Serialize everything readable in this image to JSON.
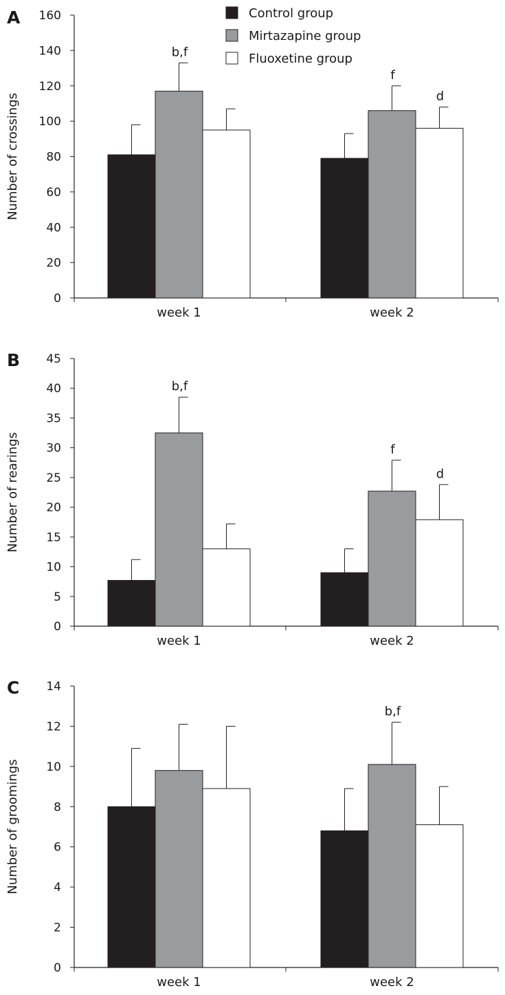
{
  "legend": [
    {
      "name": "Control group",
      "color": "#231f20"
    },
    {
      "name": "Mirtazapine group",
      "color": "#9a9b9d"
    },
    {
      "name": "Fluoxetine group",
      "color": "#ffffff"
    }
  ],
  "chart_data": [
    {
      "type": "bar",
      "panel": "A",
      "categories": [
        "week 1",
        "week 2"
      ],
      "ylabel": "Number of crossings",
      "ylim": [
        0,
        160
      ],
      "yticks": [
        0,
        20,
        40,
        60,
        80,
        100,
        120,
        140,
        160
      ],
      "series": [
        {
          "name": "Control group",
          "values": [
            81,
            79
          ],
          "errors": [
            17,
            14
          ]
        },
        {
          "name": "Mirtazapine group",
          "values": [
            117,
            106
          ],
          "errors": [
            16,
            14
          ]
        },
        {
          "name": "Fluoxetine group",
          "values": [
            95,
            96
          ],
          "errors": [
            12,
            12
          ]
        }
      ],
      "annotations": [
        {
          "category": "week 1",
          "series": "Mirtazapine group",
          "text": "b,f"
        },
        {
          "category": "week 2",
          "series": "Mirtazapine group",
          "text": "f"
        },
        {
          "category": "week 2",
          "series": "Fluoxetine group",
          "text": "d"
        }
      ]
    },
    {
      "type": "bar",
      "panel": "B",
      "categories": [
        "week 1",
        "week 2"
      ],
      "ylabel": "Number of rearings",
      "ylim": [
        0,
        45
      ],
      "yticks": [
        0,
        5,
        10,
        15,
        20,
        25,
        30,
        35,
        40,
        45
      ],
      "series": [
        {
          "name": "Control group",
          "values": [
            7.7,
            9.0
          ],
          "errors": [
            3.5,
            4.0
          ]
        },
        {
          "name": "Mirtazapine group",
          "values": [
            32.5,
            22.7
          ],
          "errors": [
            6.0,
            5.2
          ]
        },
        {
          "name": "Fluoxetine group",
          "values": [
            13.0,
            17.9
          ],
          "errors": [
            4.2,
            5.9
          ]
        }
      ],
      "annotations": [
        {
          "category": "week 1",
          "series": "Mirtazapine group",
          "text": "b,f"
        },
        {
          "category": "week 2",
          "series": "Mirtazapine group",
          "text": "f"
        },
        {
          "category": "week 2",
          "series": "Fluoxetine group",
          "text": "d"
        }
      ]
    },
    {
      "type": "bar",
      "panel": "C",
      "categories": [
        "week 1",
        "week 2"
      ],
      "ylabel": "Number of groomings",
      "ylim": [
        0,
        14
      ],
      "yticks": [
        0,
        2,
        4,
        6,
        8,
        10,
        12,
        14
      ],
      "series": [
        {
          "name": "Control group",
          "values": [
            8.0,
            6.8
          ],
          "errors": [
            2.9,
            2.1
          ]
        },
        {
          "name": "Mirtazapine group",
          "values": [
            9.8,
            10.1
          ],
          "errors": [
            2.3,
            2.1
          ]
        },
        {
          "name": "Fluoxetine group",
          "values": [
            8.9,
            7.1
          ],
          "errors": [
            3.1,
            1.9
          ]
        }
      ],
      "annotations": [
        {
          "category": "week 2",
          "series": "Mirtazapine group",
          "text": "b,f"
        }
      ]
    }
  ]
}
